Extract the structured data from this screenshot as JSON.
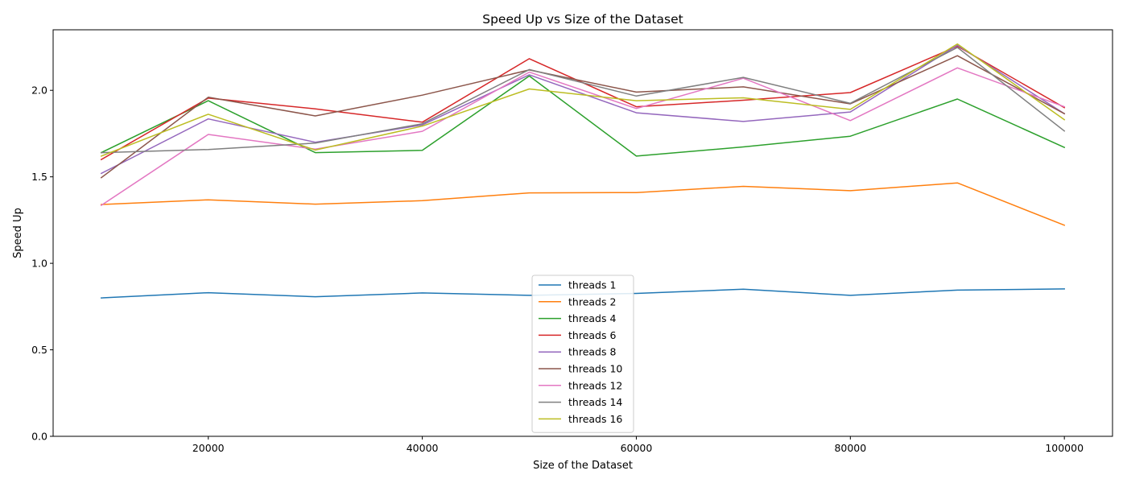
{
  "chart_data": {
    "type": "line",
    "title": "Speed Up vs Size of the Dataset",
    "xlabel": "Size of the Dataset",
    "ylabel": "Speed Up",
    "xlim": [
      5500,
      104500
    ],
    "ylim": [
      0.0,
      2.35
    ],
    "xticks": [
      20000,
      40000,
      60000,
      80000,
      100000
    ],
    "xtick_labels": [
      "20000",
      "40000",
      "60000",
      "80000",
      "100000"
    ],
    "yticks": [
      0.0,
      0.5,
      1.0,
      1.5,
      2.0
    ],
    "ytick_labels": [
      "0.0",
      "0.5",
      "1.0",
      "1.5",
      "2.0"
    ],
    "grid": false,
    "legend_position": "bottom-center",
    "x": [
      10000,
      20000,
      30000,
      40000,
      50000,
      60000,
      70000,
      80000,
      90000,
      100000
    ],
    "series": [
      {
        "name": "threads 1",
        "color": "#1f77b4",
        "values": [
          0.8,
          0.83,
          0.807,
          0.829,
          0.815,
          0.826,
          0.85,
          0.815,
          0.845,
          0.852
        ]
      },
      {
        "name": "threads 2",
        "color": "#ff7f0e",
        "values": [
          1.34,
          1.367,
          1.342,
          1.362,
          1.407,
          1.409,
          1.445,
          1.42,
          1.465,
          1.22
        ]
      },
      {
        "name": "threads 4",
        "color": "#2ca02c",
        "values": [
          1.64,
          1.94,
          1.64,
          1.653,
          2.083,
          1.62,
          1.673,
          1.735,
          1.95,
          1.67
        ]
      },
      {
        "name": "threads 6",
        "color": "#d62728",
        "values": [
          1.6,
          1.955,
          1.893,
          1.816,
          2.183,
          1.905,
          1.943,
          1.987,
          2.255,
          1.9
        ]
      },
      {
        "name": "threads 8",
        "color": "#9467bd",
        "values": [
          1.52,
          1.835,
          1.7,
          1.8,
          2.09,
          1.87,
          1.82,
          1.875,
          2.26,
          1.865
        ]
      },
      {
        "name": "threads 10",
        "color": "#8c564b",
        "values": [
          1.495,
          1.96,
          1.852,
          1.972,
          2.118,
          1.99,
          2.02,
          1.922,
          2.2,
          1.865
        ]
      },
      {
        "name": "threads 12",
        "color": "#e377c2",
        "values": [
          1.335,
          1.745,
          1.66,
          1.763,
          2.105,
          1.895,
          2.07,
          1.825,
          2.13,
          1.905
        ]
      },
      {
        "name": "threads 14",
        "color": "#7f7f7f",
        "values": [
          1.64,
          1.658,
          1.695,
          1.807,
          2.12,
          1.967,
          2.075,
          1.925,
          2.248,
          1.765
        ]
      },
      {
        "name": "threads 16",
        "color": "#bcbd22",
        "values": [
          1.62,
          1.862,
          1.655,
          1.793,
          2.008,
          1.94,
          1.957,
          1.89,
          2.268,
          1.83
        ]
      }
    ]
  }
}
